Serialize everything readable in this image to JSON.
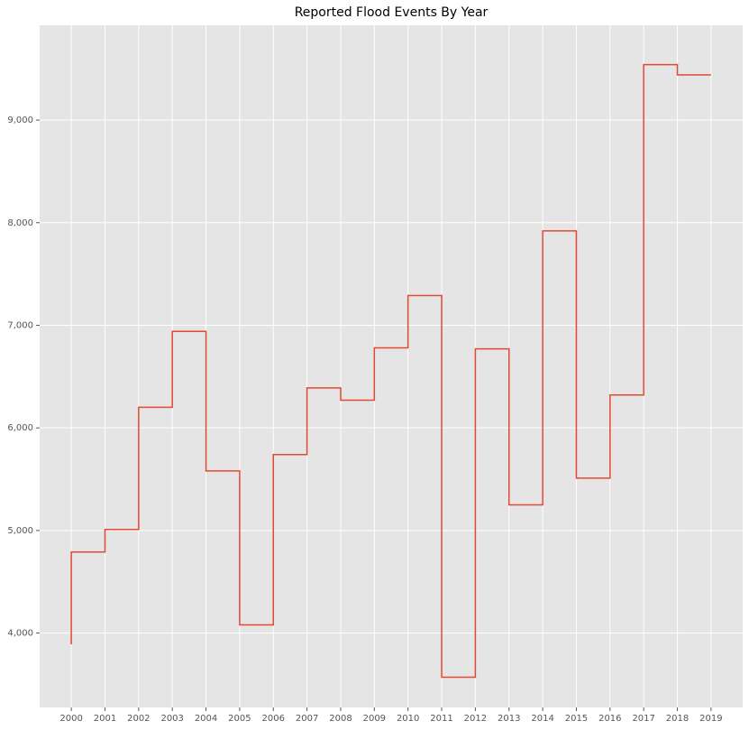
{
  "chart_data": {
    "type": "step",
    "title": "Reported Flood Events By Year",
    "x": [
      2000,
      2001,
      2002,
      2003,
      2004,
      2005,
      2006,
      2007,
      2008,
      2009,
      2010,
      2011,
      2012,
      2013,
      2014,
      2015,
      2016,
      2017,
      2018,
      2019
    ],
    "values": [
      3890,
      4790,
      5010,
      6200,
      6940,
      5580,
      4080,
      5740,
      6390,
      6270,
      6780,
      7290,
      3570,
      6770,
      5250,
      7920,
      5510,
      6320,
      9540,
      9440
    ],
    "color": "#e24a33",
    "xlim": [
      1999.06,
      2019.94
    ],
    "xticks": [
      2000,
      2001,
      2002,
      2003,
      2004,
      2005,
      2006,
      2007,
      2008,
      2009,
      2010,
      2011,
      2012,
      2013,
      2014,
      2015,
      2016,
      2017,
      2018,
      2019
    ],
    "ylim": [
      3275,
      9924
    ],
    "yticks": [
      {
        "value": 4000,
        "label": "4,000"
      },
      {
        "value": 5000,
        "label": "5,000"
      },
      {
        "value": 6000,
        "label": "6,000"
      },
      {
        "value": 7000,
        "label": "7,000"
      },
      {
        "value": 8000,
        "label": "8,000"
      },
      {
        "value": 9000,
        "label": "9,000"
      }
    ],
    "grid": true
  }
}
